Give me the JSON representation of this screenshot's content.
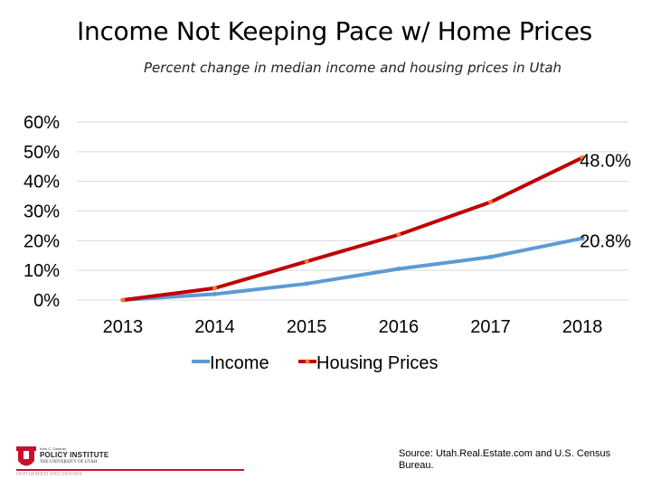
{
  "chart_data": {
    "type": "line",
    "title": "Income Not Keeping Pace w/ Home Prices",
    "subtitle": "Percent change in median income and housing prices in Utah",
    "categories": [
      "2013",
      "2014",
      "2015",
      "2016",
      "2017",
      "2018"
    ],
    "y_ticks": [
      "60%",
      "50%",
      "40%",
      "30%",
      "20%",
      "10%",
      "0%"
    ],
    "ylim": [
      0,
      60
    ],
    "grid": true,
    "legend_position": "bottom",
    "series": [
      {
        "name": "Income",
        "values": [
          0,
          2,
          5.5,
          10.5,
          14.5,
          20.8
        ],
        "color": "#5b9bd5"
      },
      {
        "name": "Housing Prices",
        "values": [
          0,
          4,
          13,
          22,
          33,
          48.0
        ],
        "color": "#c00000",
        "marker_color": "#ed7d31"
      }
    ],
    "data_labels": [
      {
        "series": "Housing Prices",
        "text": "48.0%"
      },
      {
        "series": "Income",
        "text": "20.8%"
      }
    ]
  },
  "source": "Source: Utah.Real.Estate.com and U.S. Census Bureau.",
  "logo": {
    "small_text": "Kem C. Gardner",
    "main_text": "POLICY INSTITUTE",
    "university": "THE UNIVERSITY OF UTAH",
    "tagline": "INFORMED DECISIONS"
  }
}
